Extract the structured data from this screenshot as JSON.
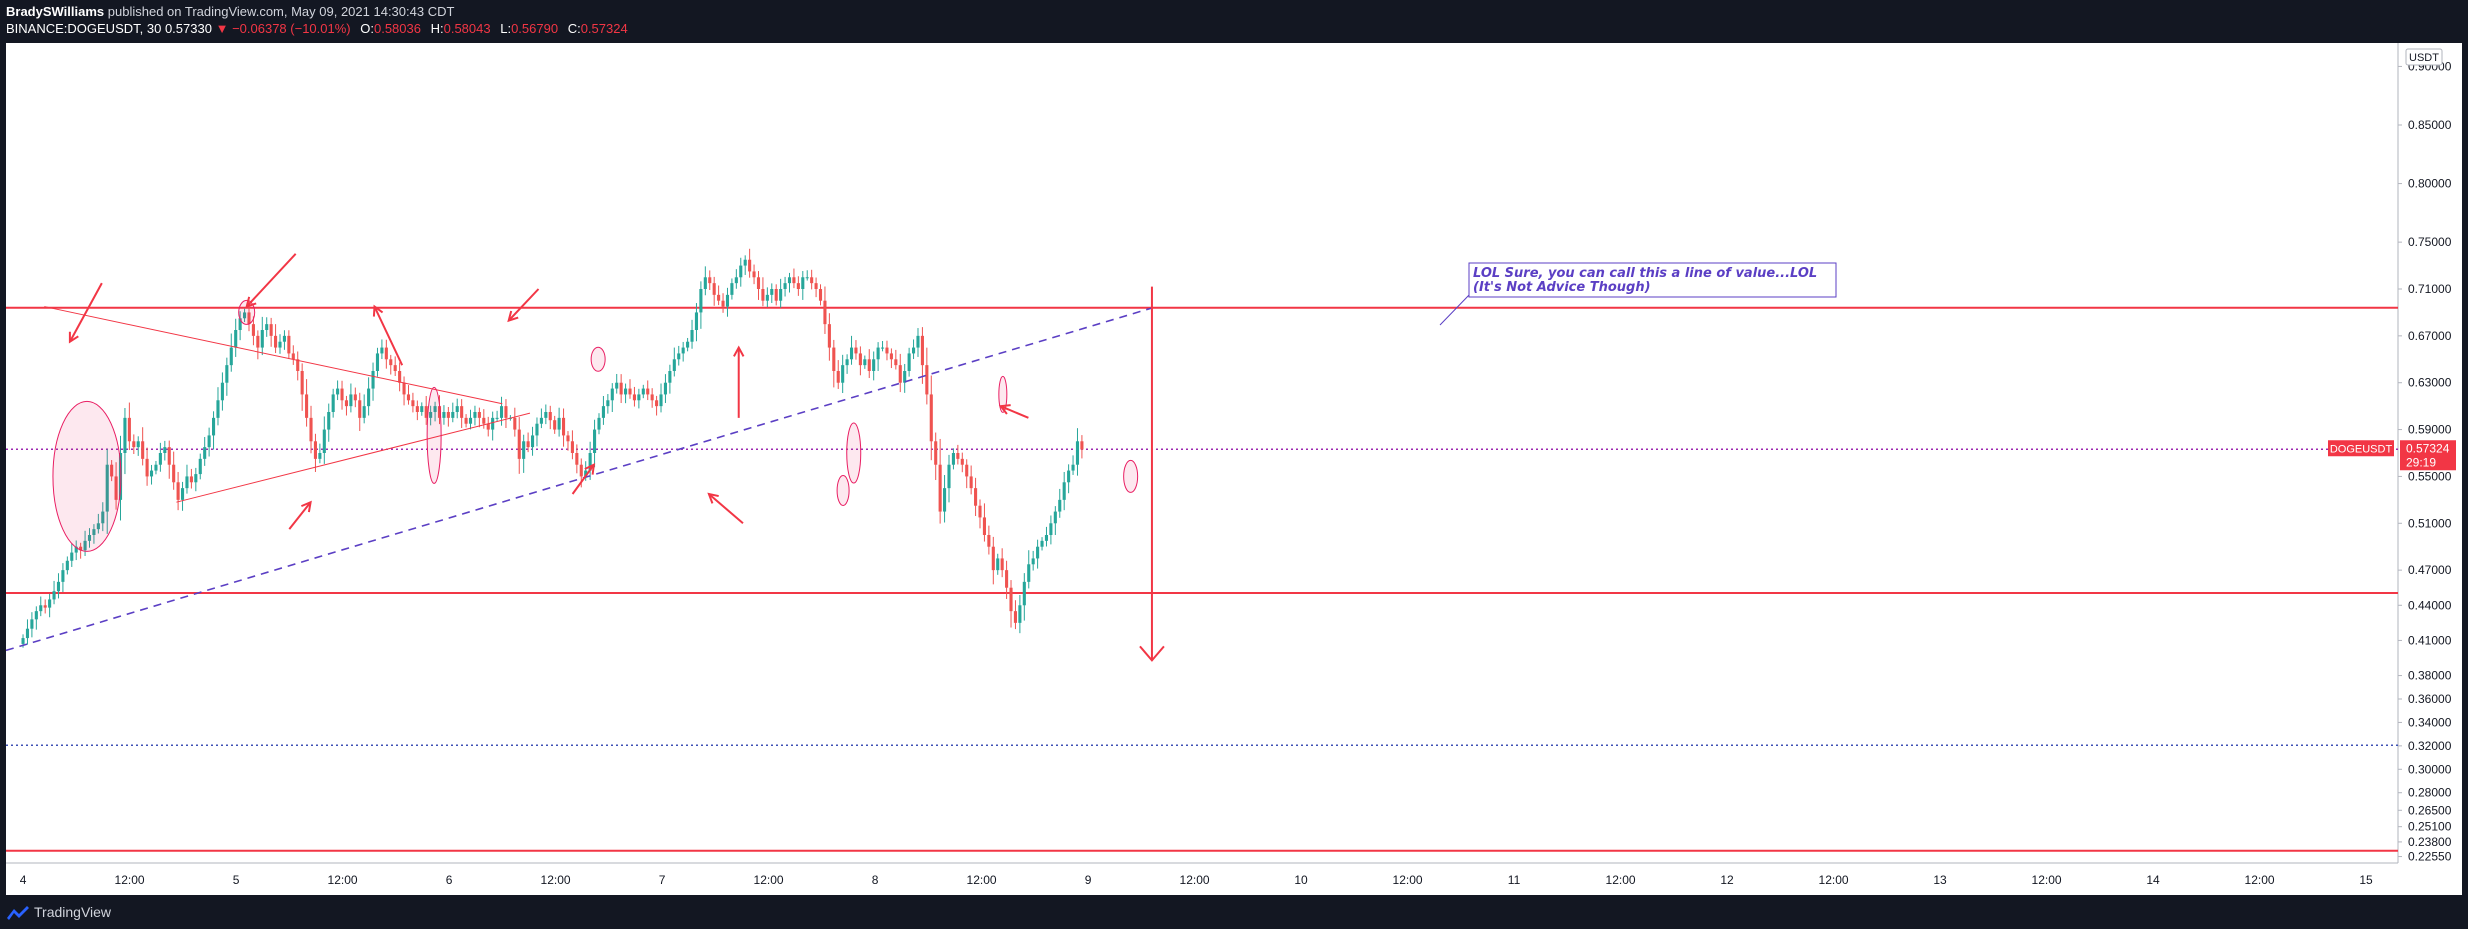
{
  "header": {
    "author": "BradySWilliams",
    "published_text": "published on TradingView.com, May 09, 2021 14:30:43 CDT",
    "symbol_line": "BINANCE:DOGEUSDT, 30",
    "last": "0.57330",
    "change": "−0.06378 (−10.01%)",
    "open_label": "O:",
    "open": "0.58036",
    "high_label": "H:",
    "high": "0.58043",
    "low_label": "L:",
    "low": "0.56790",
    "close_label": "C:",
    "close": "0.57324"
  },
  "footer": {
    "brand": "TradingView"
  },
  "colors": {
    "background": "#ffffff",
    "up": "#26a69a",
    "down": "#ef5350",
    "annotation": "#f23645",
    "trendline": "#5b3fc4",
    "text": "#131722"
  },
  "chart_data": {
    "type": "candlestick",
    "symbol": "DOGEUSDT",
    "interval": "30",
    "price_axis_unit": "USDT",
    "ylim": [
      0.22,
      0.92
    ],
    "y_ticks": [
      "0.90000",
      "0.85000",
      "0.80000",
      "0.75000",
      "0.71000",
      "0.67000",
      "0.63000",
      "0.59000",
      "0.55000",
      "0.51000",
      "0.47000",
      "0.44000",
      "0.41000",
      "0.38000",
      "0.36000",
      "0.34000",
      "0.32000",
      "0.30000",
      "0.28000",
      "0.26500",
      "0.25100",
      "0.23800",
      "0.22550"
    ],
    "x_ticks": [
      {
        "label": "4",
        "t": 0.0
      },
      {
        "label": "12:00",
        "t": 0.5
      },
      {
        "label": "5",
        "t": 1.0
      },
      {
        "label": "12:00",
        "t": 1.5
      },
      {
        "label": "6",
        "t": 2.0
      },
      {
        "label": "12:00",
        "t": 2.5
      },
      {
        "label": "7",
        "t": 3.0
      },
      {
        "label": "12:00",
        "t": 3.5
      },
      {
        "label": "8",
        "t": 4.0
      },
      {
        "label": "12:00",
        "t": 4.5
      },
      {
        "label": "9",
        "t": 5.0
      },
      {
        "label": "12:00",
        "t": 5.5
      },
      {
        "label": "10",
        "t": 6.0
      },
      {
        "label": "12:00",
        "t": 6.5
      },
      {
        "label": "11",
        "t": 7.0
      },
      {
        "label": "12:00",
        "t": 7.5
      },
      {
        "label": "12",
        "t": 8.0
      },
      {
        "label": "12:00",
        "t": 8.5
      },
      {
        "label": "13",
        "t": 9.0
      },
      {
        "label": "12:00",
        "t": 9.5
      },
      {
        "label": "14",
        "t": 10.0
      },
      {
        "label": "12:00",
        "t": 10.5
      },
      {
        "label": "15",
        "t": 11.0
      }
    ],
    "x_range": [
      -0.08,
      11.15
    ],
    "candle_width_days": 0.0208,
    "closes": [
      0.412,
      0.42,
      0.428,
      0.435,
      0.44,
      0.438,
      0.445,
      0.452,
      0.46,
      0.47,
      0.478,
      0.485,
      0.49,
      0.487,
      0.495,
      0.5,
      0.505,
      0.51,
      0.52,
      0.56,
      0.55,
      0.53,
      0.57,
      0.6,
      0.58,
      0.575,
      0.58,
      0.565,
      0.55,
      0.555,
      0.56,
      0.57,
      0.575,
      0.56,
      0.545,
      0.53,
      0.54,
      0.55,
      0.545,
      0.552,
      0.565,
      0.575,
      0.585,
      0.6,
      0.615,
      0.63,
      0.645,
      0.66,
      0.675,
      0.685,
      0.69,
      0.68,
      0.67,
      0.66,
      0.675,
      0.68,
      0.67,
      0.66,
      0.665,
      0.67,
      0.655,
      0.65,
      0.64,
      0.62,
      0.6,
      0.58,
      0.565,
      0.57,
      0.59,
      0.605,
      0.62,
      0.625,
      0.615,
      0.61,
      0.62,
      0.615,
      0.6,
      0.61,
      0.625,
      0.64,
      0.655,
      0.66,
      0.65,
      0.645,
      0.64,
      0.63,
      0.62,
      0.615,
      0.61,
      0.605,
      0.61,
      0.6,
      0.605,
      0.61,
      0.6,
      0.605,
      0.6,
      0.605,
      0.61,
      0.6,
      0.595,
      0.6,
      0.605,
      0.6,
      0.595,
      0.59,
      0.6,
      0.6,
      0.61,
      0.6,
      0.6,
      0.59,
      0.565,
      0.58,
      0.575,
      0.585,
      0.595,
      0.6,
      0.605,
      0.598,
      0.59,
      0.6,
      0.585,
      0.58,
      0.57,
      0.56,
      0.55,
      0.555,
      0.57,
      0.59,
      0.6,
      0.61,
      0.615,
      0.625,
      0.63,
      0.62,
      0.625,
      0.62,
      0.615,
      0.62,
      0.625,
      0.62,
      0.615,
      0.61,
      0.62,
      0.63,
      0.64,
      0.65,
      0.655,
      0.66,
      0.665,
      0.675,
      0.69,
      0.71,
      0.72,
      0.715,
      0.705,
      0.7,
      0.695,
      0.705,
      0.715,
      0.72,
      0.73,
      0.735,
      0.725,
      0.72,
      0.71,
      0.7,
      0.705,
      0.71,
      0.7,
      0.71,
      0.715,
      0.72,
      0.715,
      0.71,
      0.72,
      0.72,
      0.715,
      0.71,
      0.7,
      0.68,
      0.66,
      0.64,
      0.63,
      0.645,
      0.65,
      0.66,
      0.655,
      0.645,
      0.65,
      0.64,
      0.65,
      0.66,
      0.66,
      0.655,
      0.65,
      0.645,
      0.63,
      0.64,
      0.655,
      0.66,
      0.67,
      0.645,
      0.62,
      0.58,
      0.56,
      0.52,
      0.54,
      0.56,
      0.57,
      0.565,
      0.56,
      0.55,
      0.54,
      0.525,
      0.515,
      0.5,
      0.49,
      0.47,
      0.48,
      0.47,
      0.455,
      0.435,
      0.425,
      0.44,
      0.46,
      0.475,
      0.48,
      0.49,
      0.495,
      0.5,
      0.51,
      0.52,
      0.53,
      0.545,
      0.555,
      0.56,
      0.58,
      0.573
    ],
    "levels": [
      {
        "price": 0.694,
        "style": "solid",
        "color": "#f23645"
      },
      {
        "price": 0.4505,
        "style": "solid",
        "color": "#f23645"
      },
      {
        "price": 0.2305,
        "style": "solid",
        "color": "#f23645"
      },
      {
        "price": 0.5732,
        "style": "dotted",
        "color": "#9c27b0"
      },
      {
        "price": 0.3205,
        "style": "dotted",
        "color": "#3f51b5"
      }
    ],
    "trendline": {
      "t1": -0.08,
      "p1": 0.4015,
      "t2": 5.3,
      "p2": 0.6938,
      "style": "dashed"
    },
    "triangle": [
      {
        "t1": 0.1,
        "p1": 0.695,
        "t2": 2.25,
        "p2": 0.612
      },
      {
        "t1": 0.72,
        "p1": 0.528,
        "t2": 2.38,
        "p2": 0.604
      }
    ],
    "price_label": {
      "symbol": "DOGEUSDT",
      "price": "0.57324",
      "countdown": "29:19",
      "color": "#f23645"
    },
    "annotation_text": [
      "LOL Sure, you can call this a line of value...LOL",
      "(It's Not Advice Though)"
    ],
    "big_arrow": {
      "t": 5.3,
      "p_top": 0.712,
      "p_bottom": 0.393
    }
  }
}
